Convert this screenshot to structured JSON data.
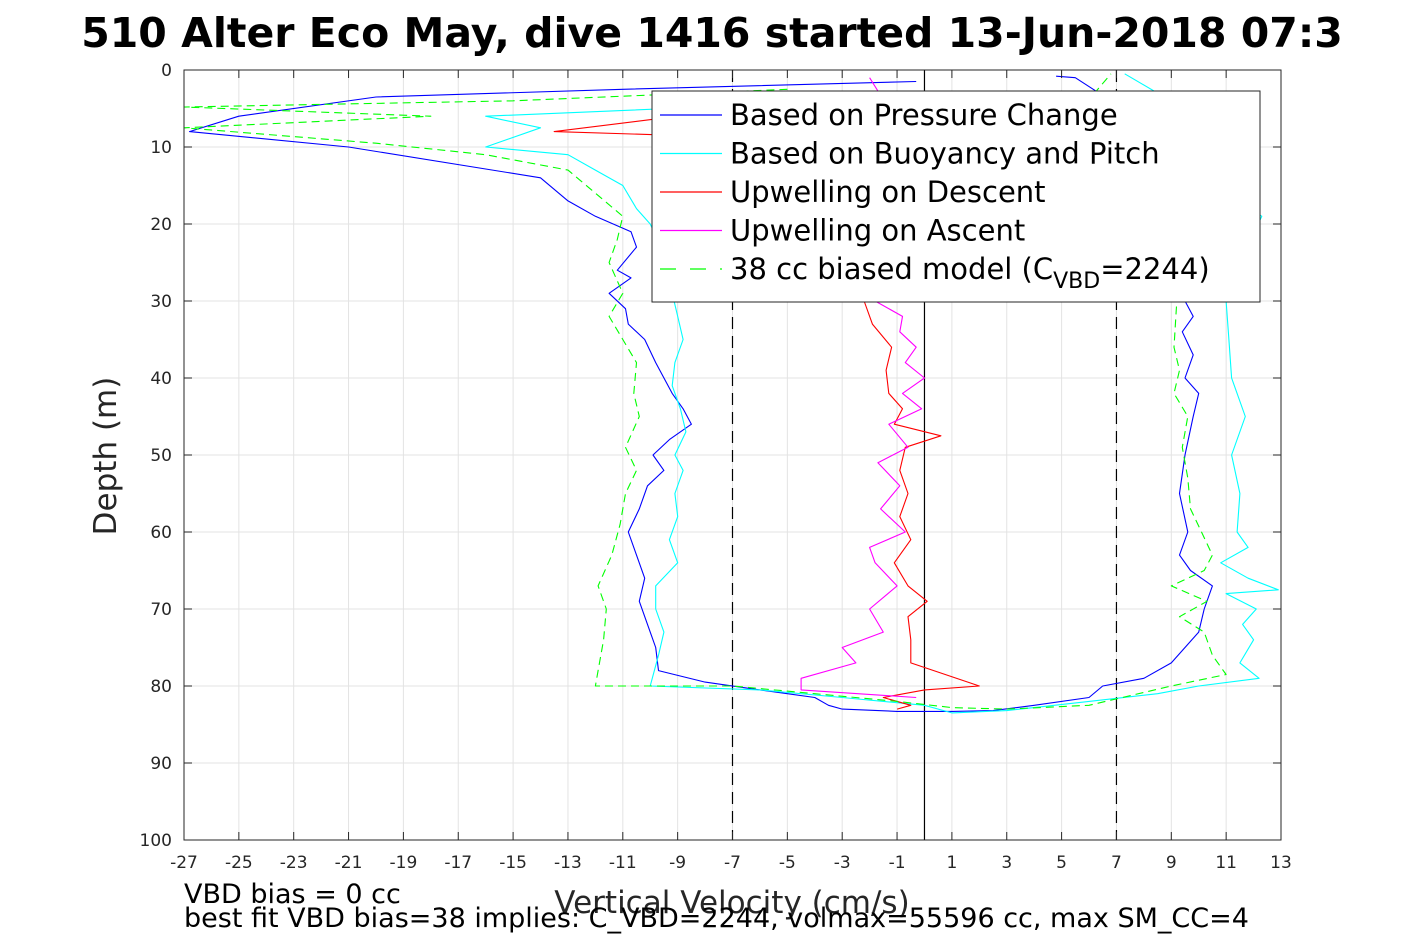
{
  "chart_data": {
    "type": "line",
    "title": "510 Alter Eco May, dive 1416 started 13-Jun-2018 07:3",
    "xlabel": "Vertical Velocity (cm/s)",
    "ylabel": "Depth (m)",
    "xlim": [
      -27,
      13
    ],
    "ylim": [
      0,
      100
    ],
    "y_reversed": true,
    "grid": true,
    "legend_position": "top-right",
    "xticks": [
      "-27",
      "-25",
      "-23",
      "-21",
      "-19",
      "-17",
      "-15",
      "-13",
      "-11",
      "-9",
      "-7",
      "-5",
      "-3",
      "-1",
      "1",
      "3",
      "5",
      "7",
      "9",
      "11",
      "13"
    ],
    "yticks": [
      "0",
      "10",
      "20",
      "30",
      "40",
      "50",
      "60",
      "70",
      "80",
      "90",
      "100"
    ],
    "reference_lines": [
      {
        "x": 0,
        "style": "solid",
        "color": "#000000"
      },
      {
        "x": -7,
        "style": "dashed",
        "color": "#000000"
      },
      {
        "x": 7,
        "style": "dashed",
        "color": "#000000"
      }
    ],
    "series": [
      {
        "name": "Based on Pressure Change",
        "color": "#0000ff",
        "dash": "",
        "segments": [
          [
            [
              -0.3,
              1.5
            ],
            [
              -11,
              2.5
            ],
            [
              -20,
              3.5
            ],
            [
              -25,
              6
            ],
            [
              -26.8,
              8
            ],
            [
              -21,
              10
            ],
            [
              -14,
              14
            ],
            [
              -13,
              17
            ],
            [
              -12,
              19
            ],
            [
              -10.7,
              21
            ],
            [
              -10.5,
              23
            ],
            [
              -11.2,
              26
            ],
            [
              -10.7,
              27
            ],
            [
              -11.5,
              29
            ],
            [
              -10.9,
              31
            ],
            [
              -10.8,
              33
            ],
            [
              -10.2,
              35
            ],
            [
              -9.8,
              38
            ],
            [
              -9.2,
              42
            ],
            [
              -8.8,
              44
            ],
            [
              -8.5,
              46
            ],
            [
              -9.3,
              48
            ],
            [
              -9.9,
              50
            ],
            [
              -9.5,
              52
            ],
            [
              -10.1,
              54
            ],
            [
              -10.4,
              57
            ],
            [
              -10.8,
              60
            ],
            [
              -10.5,
              63
            ],
            [
              -10.2,
              66
            ],
            [
              -10.4,
              69
            ],
            [
              -10.1,
              72
            ],
            [
              -9.8,
              75
            ],
            [
              -9.7,
              78
            ],
            [
              -8,
              79.5
            ],
            [
              -6,
              80.5
            ],
            [
              -5,
              81
            ],
            [
              -4,
              81.5
            ],
            [
              -3.5,
              82.5
            ],
            [
              -3,
              83
            ],
            [
              -1,
              83.3
            ],
            [
              1,
              83.3
            ],
            [
              2.5,
              83.2
            ],
            [
              4,
              82.5
            ],
            [
              6,
              81.5
            ],
            [
              6.5,
              80
            ],
            [
              8,
              79
            ],
            [
              9,
              77
            ],
            [
              9.5,
              75
            ],
            [
              10,
              73
            ],
            [
              10.2,
              70
            ],
            [
              10.5,
              67
            ],
            [
              9.7,
              65
            ],
            [
              9.3,
              63
            ],
            [
              9.6,
              60
            ],
            [
              9.3,
              55
            ],
            [
              9.5,
              50
            ],
            [
              9.8,
              45
            ],
            [
              10,
              42
            ],
            [
              9.5,
              40
            ],
            [
              9.8,
              37
            ],
            [
              9.4,
              34
            ],
            [
              9.8,
              32
            ],
            [
              9.5,
              30
            ],
            [
              9.2,
              27
            ],
            [
              9.7,
              22
            ],
            [
              9.3,
              17
            ],
            [
              9.8,
              14
            ],
            [
              9.2,
              12
            ],
            [
              8.6,
              9
            ],
            [
              7.8,
              6
            ],
            [
              6.8,
              4
            ],
            [
              5.5,
              1
            ],
            [
              4.8,
              0.8
            ]
          ]
        ]
      },
      {
        "name": "Based on Buoyancy and Pitch",
        "color": "#00ffff",
        "dash": "",
        "segments": [
          [
            [
              -2,
              4.5
            ],
            [
              -8,
              4.8
            ],
            [
              -16,
              6
            ],
            [
              -14,
              7.5
            ],
            [
              -16,
              10
            ],
            [
              -13,
              11
            ],
            [
              -12,
              13
            ],
            [
              -11,
              15
            ],
            [
              -10.5,
              18
            ],
            [
              -10,
              20
            ],
            [
              -9.6,
              23
            ],
            [
              -9.5,
              26
            ],
            [
              -9.2,
              29
            ],
            [
              -9,
              32
            ],
            [
              -8.8,
              35
            ],
            [
              -9.1,
              38
            ],
            [
              -9.2,
              41
            ],
            [
              -8.9,
              44
            ],
            [
              -8.7,
              47
            ],
            [
              -9.1,
              50
            ],
            [
              -8.8,
              52
            ],
            [
              -9.1,
              55
            ],
            [
              -9.0,
              58
            ],
            [
              -9.3,
              61
            ],
            [
              -9.0,
              64
            ],
            [
              -9.8,
              67
            ],
            [
              -9.8,
              70
            ],
            [
              -9.5,
              73
            ],
            [
              -9.7,
              76
            ],
            [
              -10,
              80
            ],
            [
              -6,
              80.5
            ],
            [
              -3,
              81.5
            ],
            [
              0,
              82.5
            ],
            [
              1,
              83.5
            ],
            [
              3,
              83.2
            ],
            [
              6,
              82
            ],
            [
              8.5,
              81
            ],
            [
              10,
              80
            ],
            [
              12.2,
              79
            ],
            [
              11.5,
              77
            ],
            [
              12,
              74
            ],
            [
              11.6,
              72
            ],
            [
              12.1,
              70
            ],
            [
              11,
              68
            ],
            [
              12.9,
              67.5
            ],
            [
              11.8,
              66
            ],
            [
              10.8,
              64
            ],
            [
              11.8,
              62
            ],
            [
              11.4,
              60
            ],
            [
              11.5,
              55
            ],
            [
              11.2,
              50
            ],
            [
              11.7,
              45
            ],
            [
              11.2,
              40
            ],
            [
              11.1,
              35
            ],
            [
              11,
              30
            ],
            [
              11.5,
              25
            ],
            [
              12.3,
              19
            ],
            [
              11.5,
              17
            ],
            [
              10.8,
              14
            ],
            [
              10.5,
              10
            ],
            [
              9.5,
              6
            ],
            [
              8.5,
              3
            ],
            [
              7.3,
              0.5
            ]
          ]
        ]
      },
      {
        "name": "Upwelling on Descent",
        "color": "#ff0000",
        "dash": "",
        "segments": [
          [
            [
              -1.5,
              4.5
            ],
            [
              -5,
              5
            ],
            [
              -9,
              6
            ],
            [
              -13.5,
              8
            ],
            [
              -9,
              8.5
            ],
            [
              -6,
              10
            ],
            [
              -3,
              15
            ],
            [
              -2,
              20
            ],
            [
              -1.5,
              25
            ],
            [
              -2.2,
              30
            ],
            [
              -1.9,
              33
            ],
            [
              -1.2,
              36
            ],
            [
              -1.4,
              39
            ],
            [
              -1.3,
              42
            ],
            [
              -0.8,
              44
            ],
            [
              -1.1,
              46
            ],
            [
              0.6,
              47.5
            ],
            [
              -0.7,
              49
            ],
            [
              -0.9,
              52
            ],
            [
              -0.6,
              55
            ],
            [
              -0.9,
              58
            ],
            [
              -0.5,
              61
            ],
            [
              -1.1,
              64
            ],
            [
              -0.6,
              67
            ],
            [
              0.1,
              69
            ],
            [
              -0.6,
              71
            ],
            [
              -0.5,
              74
            ],
            [
              -0.5,
              77
            ],
            [
              2,
              80
            ],
            [
              0,
              80.5
            ],
            [
              -1.5,
              81.5
            ],
            [
              -0.5,
              82.5
            ],
            [
              -1,
              83
            ]
          ]
        ]
      },
      {
        "name": "Upwelling on Ascent",
        "color": "#ff00ff",
        "dash": "",
        "segments": [
          [
            [
              -0.3,
              81.5
            ],
            [
              -4.5,
              80.5
            ],
            [
              -4.5,
              79
            ],
            [
              -2.5,
              77
            ],
            [
              -3,
              75
            ],
            [
              -1.5,
              73
            ],
            [
              -2,
              70
            ],
            [
              -1,
              67
            ],
            [
              -1.8,
              64
            ],
            [
              -2,
              62
            ],
            [
              -0.7,
              60
            ],
            [
              -1.6,
              57
            ],
            [
              -0.9,
              54
            ],
            [
              -1.7,
              51
            ],
            [
              -0.6,
              49
            ],
            [
              -1.3,
              46
            ],
            [
              -0.1,
              44
            ],
            [
              -0.8,
              42
            ],
            [
              0,
              40
            ],
            [
              -0.7,
              38
            ],
            [
              -0.3,
              36
            ],
            [
              -0.9,
              34
            ],
            [
              -0.8,
              32
            ],
            [
              -1.8,
              30
            ],
            [
              -1.5,
              25
            ],
            [
              -1.2,
              15
            ],
            [
              -1.3,
              5
            ],
            [
              -2.0,
              1
            ]
          ]
        ]
      },
      {
        "name": "38 cc biased model (C_VBD=2244)",
        "legend_parts": [
          "38 cc biased model (C",
          "VBD",
          "=2244)"
        ],
        "color": "#00ff00",
        "dash": "8,5",
        "segments": [
          [
            [
              -5,
              2.5
            ],
            [
              -15,
              4
            ],
            [
              -27,
              4.8
            ],
            [
              -18,
              6
            ],
            [
              -27,
              7.5
            ],
            [
              -20,
              9.5
            ],
            [
              -16,
              11
            ],
            [
              -13,
              13
            ],
            [
              -12,
              16
            ],
            [
              -11,
              19
            ],
            [
              -11.2,
              22
            ],
            [
              -11.5,
              25
            ],
            [
              -11.0,
              29
            ],
            [
              -11.5,
              32
            ],
            [
              -11.0,
              35
            ],
            [
              -10.5,
              38
            ],
            [
              -10.6,
              42
            ],
            [
              -10.4,
              45
            ],
            [
              -10.9,
              49
            ],
            [
              -10.5,
              52
            ],
            [
              -10.9,
              55
            ],
            [
              -11.1,
              59
            ],
            [
              -11.4,
              63
            ],
            [
              -11.9,
              67
            ],
            [
              -11.6,
              70
            ],
            [
              -11.7,
              74
            ],
            [
              -11.9,
              78
            ],
            [
              -12,
              80
            ],
            [
              -7,
              80
            ],
            [
              -4,
              81
            ],
            [
              -1,
              82
            ],
            [
              1,
              82.8
            ],
            [
              3,
              83
            ],
            [
              6,
              82.5
            ],
            [
              9,
              80
            ],
            [
              11,
              78.5
            ],
            [
              10.5,
              76
            ],
            [
              10.2,
              73
            ],
            [
              9.3,
              71
            ],
            [
              10.3,
              69
            ],
            [
              9.0,
              67
            ],
            [
              10.2,
              65
            ],
            [
              10.5,
              63
            ],
            [
              10.1,
              60
            ],
            [
              9.7,
              57
            ],
            [
              9.6,
              53
            ],
            [
              9.4,
              49
            ],
            [
              9.6,
              45
            ],
            [
              9.1,
              42
            ],
            [
              9.3,
              39
            ],
            [
              9.1,
              36
            ],
            [
              9.2,
              30
            ],
            [
              9.4,
              25
            ],
            [
              9.2,
              20
            ],
            [
              8.7,
              15
            ],
            [
              8.0,
              10
            ],
            [
              7.0,
              6
            ],
            [
              6.2,
              3
            ],
            [
              6.8,
              0.5
            ]
          ]
        ]
      }
    ]
  },
  "annotations": {
    "line1": "VBD bias = 0 cc",
    "line2": "best fit VBD bias=38 implies: C_VBD=2244, volmax=55596 cc, max SM_CC=4"
  }
}
